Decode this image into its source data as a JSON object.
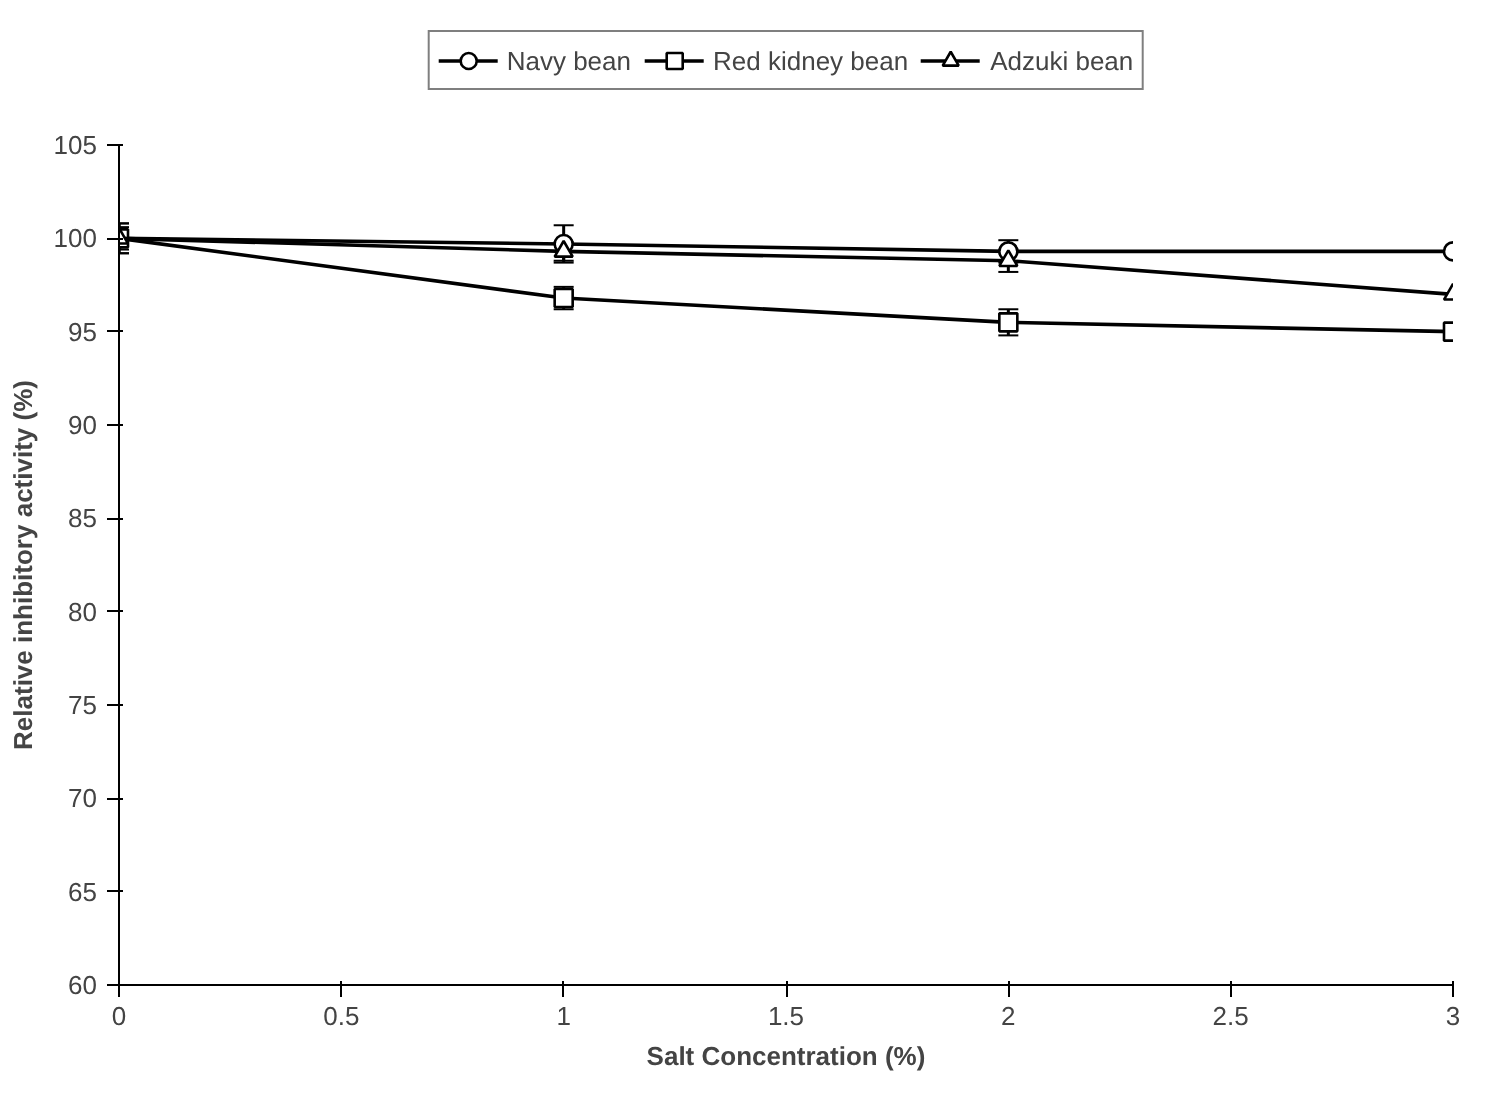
{
  "chart_data": {
    "type": "line",
    "x": [
      0,
      1,
      2,
      3
    ],
    "xlabel": "Salt Concentration (%)",
    "ylabel": "Relative inhibitory activity (%)",
    "xlim": [
      0,
      3
    ],
    "ylim": [
      60,
      105
    ],
    "xticks": [
      0,
      0.5,
      1,
      1.5,
      2,
      2.5,
      3
    ],
    "yticks": [
      60,
      65,
      70,
      75,
      80,
      85,
      90,
      95,
      100,
      105
    ],
    "grid": false,
    "legend": "top",
    "series": [
      {
        "name": "Navy bean",
        "color": "#000000",
        "marker": "circle",
        "values": [
          100,
          99.7,
          99.3,
          99.3
        ],
        "errors": [
          0.8,
          1.0,
          0.6,
          null
        ]
      },
      {
        "name": "Red kidney bean",
        "color": "#000000",
        "marker": "square",
        "values": [
          100,
          96.8,
          95.5,
          95.0
        ],
        "errors": [
          0.8,
          0.6,
          0.7,
          null
        ]
      },
      {
        "name": "Adzuki bean",
        "color": "#000000",
        "marker": "triangle",
        "values": [
          100,
          99.3,
          98.8,
          97.0
        ],
        "errors": [
          0.6,
          0.5,
          0.6,
          null
        ]
      }
    ]
  }
}
